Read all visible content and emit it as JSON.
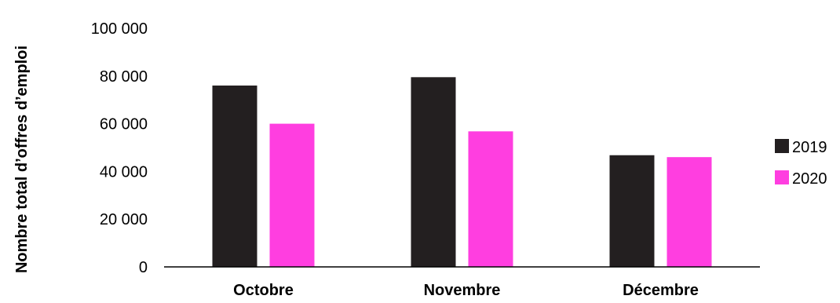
{
  "chart_data": {
    "type": "bar",
    "ylabel": "Nombre total d’offres d’emploi",
    "xlabel": "",
    "categories": [
      "Octobre",
      "Novembre",
      "Décembre"
    ],
    "series": [
      {
        "name": "2019",
        "color": "#231f20",
        "values": [
          76000,
          79500,
          46800
        ]
      },
      {
        "name": "2020",
        "color": "#ff3ee0",
        "values": [
          60000,
          56800,
          46000
        ]
      }
    ],
    "yticks": [
      "0",
      "20 000",
      "40 000",
      "60 000",
      "80 000",
      "100 000"
    ],
    "ylim": [
      0,
      100000
    ],
    "grid": false,
    "legend_position": "right"
  }
}
